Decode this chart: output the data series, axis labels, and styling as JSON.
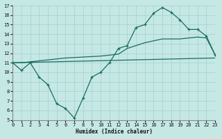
{
  "xlabel": "Humidex (Indice chaleur)",
  "bg_color": "#c5e8e5",
  "grid_color": "#a8d4d0",
  "line_color": "#1a6b60",
  "xmin": 0,
  "xmax": 23,
  "ymin": 5,
  "ymax": 17,
  "line1_x": [
    0,
    1,
    2,
    3,
    4,
    5,
    6,
    7,
    8,
    9,
    10,
    11,
    12,
    13,
    14,
    15,
    16,
    17,
    18,
    19,
    20,
    21,
    22,
    23
  ],
  "line1_y": [
    11.0,
    10.2,
    11.0,
    9.5,
    8.7,
    6.7,
    6.2,
    5.2,
    7.3,
    9.5,
    10.0,
    11.0,
    12.5,
    12.8,
    14.7,
    15.0,
    16.2,
    16.8,
    16.3,
    15.5,
    14.5,
    14.5,
    13.8,
    11.8
  ],
  "line2_x": [
    0,
    1,
    2,
    3,
    4,
    5,
    6,
    7,
    8,
    9,
    10,
    11,
    12,
    13,
    14,
    15,
    16,
    17,
    18,
    19,
    20,
    21,
    22,
    23
  ],
  "line2_y": [
    11.0,
    11.0,
    11.1,
    11.2,
    11.3,
    11.4,
    11.5,
    11.55,
    11.6,
    11.65,
    11.7,
    11.8,
    11.9,
    12.5,
    12.8,
    13.1,
    13.3,
    13.5,
    13.5,
    13.5,
    13.6,
    13.7,
    13.6,
    11.8
  ],
  "line3_x": [
    0,
    23
  ],
  "line3_y": [
    11.0,
    11.5
  ]
}
